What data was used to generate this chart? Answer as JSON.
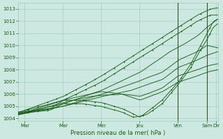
{
  "xlabel": "Pression niveau de la mer( hPa )",
  "ylim": [
    1003.8,
    1013.5
  ],
  "xlim": [
    0,
    125
  ],
  "yticks": [
    1004,
    1005,
    1006,
    1007,
    1008,
    1009,
    1010,
    1011,
    1012,
    1013
  ],
  "xtick_positions": [
    4,
    28,
    52,
    76,
    100,
    118,
    124
  ],
  "xtick_labels": [
    "Mar",
    "Mar",
    "Mer",
    "Jeu",
    "Ven",
    "Sam",
    "Dir"
  ],
  "bg_color": "#cce8e0",
  "grid_color": "#99ccbb",
  "line_color": "#1a5c1a",
  "vline_positions": [
    100,
    118
  ],
  "font_color": "#1a5c1a"
}
